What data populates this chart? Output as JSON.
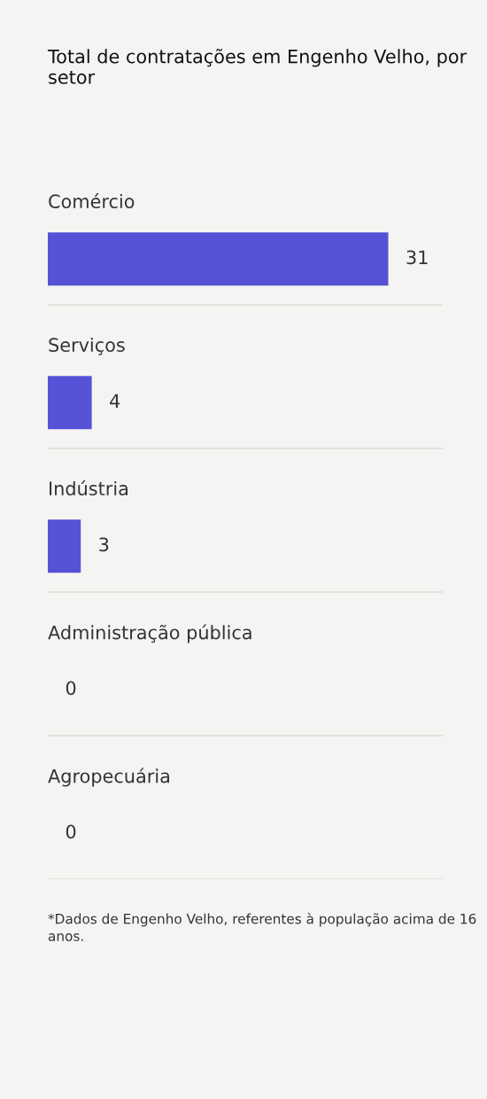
{
  "chart_data": {
    "type": "bar",
    "orientation": "horizontal",
    "title": "Total de contratações em Engenho Velho, por setor",
    "categories": [
      "Comércio",
      "Serviços",
      "Indústria",
      "Administração pública",
      "Agropecuária"
    ],
    "values": [
      31,
      4,
      3,
      0,
      0
    ],
    "color": "#5652d6",
    "data_labels": true,
    "legend": false,
    "annotations": [
      "*Dados de Engenho Velho, referentes à população acima de 16 anos."
    ]
  }
}
